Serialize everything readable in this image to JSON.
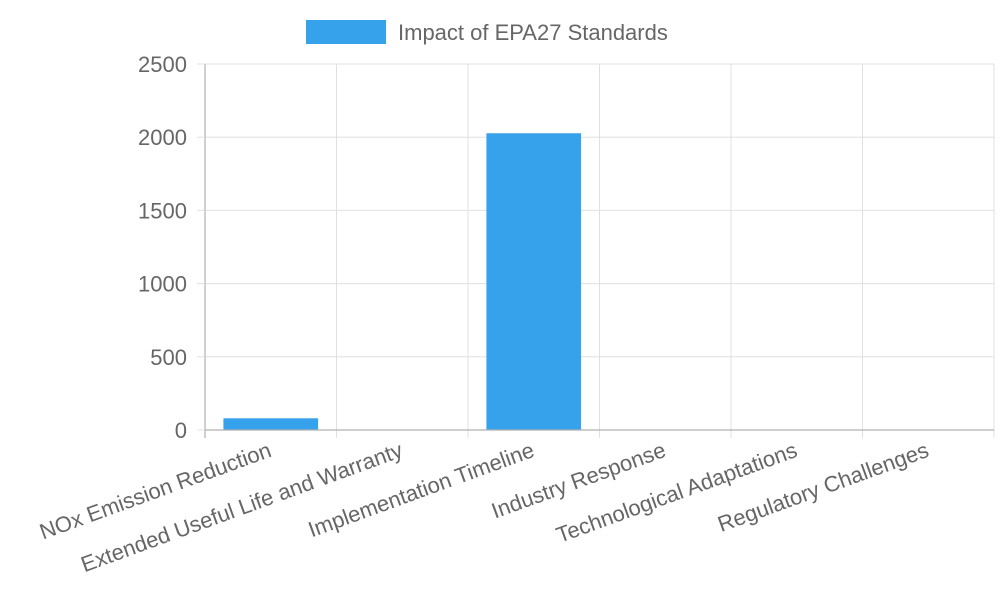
{
  "chart_data": {
    "type": "bar",
    "categories": [
      "NOx Emission Reduction",
      "Extended Useful Life and Warranty",
      "Implementation Timeline",
      "Industry Response",
      "Technological Adaptations",
      "Regulatory Challenges"
    ],
    "series": [
      {
        "name": "Impact of EPA27 Standards",
        "values": [
          80,
          2,
          2027,
          0,
          0,
          0
        ],
        "color": "#36a2eb"
      }
    ],
    "ylim": [
      0,
      2500
    ],
    "yticks": [
      "0",
      "500",
      "1000",
      "1500",
      "2000",
      "2500"
    ],
    "grid": true,
    "legend": "top-center"
  }
}
